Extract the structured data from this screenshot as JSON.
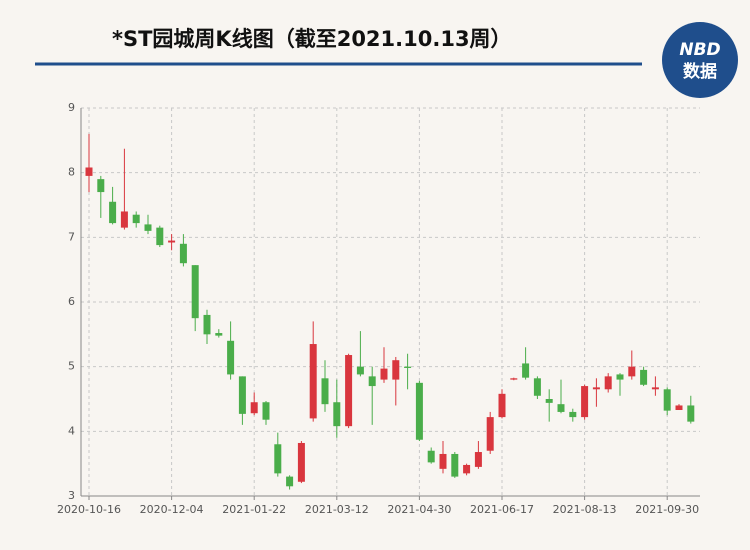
{
  "chart_data": {
    "type": "candlestick",
    "title": "*ST园城周K线图（截至2021.10.13周）",
    "logo": {
      "top": "NBD",
      "bottom": "数据"
    },
    "categories": [
      "2020-10-16",
      null,
      null,
      null,
      null,
      null,
      null,
      "2020-12-04",
      null,
      null,
      null,
      null,
      null,
      null,
      "2021-01-22",
      null,
      null,
      null,
      null,
      null,
      null,
      "2021-03-12",
      null,
      null,
      null,
      null,
      null,
      null,
      "2021-04-30",
      null,
      null,
      null,
      null,
      null,
      null,
      "2021-06-17",
      null,
      null,
      null,
      null,
      null,
      null,
      "2021-08-13",
      null,
      null,
      null,
      null,
      null,
      null,
      "2021-09-30",
      null,
      null
    ],
    "open": [
      7.95,
      7.9,
      7.55,
      7.15,
      7.35,
      7.2,
      7.15,
      6.92,
      6.9,
      6.57,
      5.8,
      5.52,
      5.4,
      4.85,
      4.28,
      4.45,
      3.8,
      3.3,
      3.22,
      4.2,
      4.82,
      4.45,
      4.08,
      5.0,
      4.85,
      4.8,
      4.8,
      5.0,
      4.75,
      3.7,
      3.42,
      3.65,
      3.35,
      3.45,
      3.7,
      4.22,
      4.8,
      5.05,
      4.82,
      4.5,
      4.42,
      4.3,
      4.22,
      4.65,
      4.65,
      4.88,
      4.85,
      4.95,
      4.65,
      4.65,
      4.33,
      4.4
    ],
    "high": [
      8.6,
      7.95,
      7.78,
      8.37,
      7.4,
      7.35,
      7.18,
      7.05,
      7.05,
      6.57,
      5.88,
      5.58,
      5.7,
      4.85,
      4.6,
      4.47,
      3.98,
      3.32,
      3.85,
      5.7,
      5.1,
      4.8,
      5.2,
      5.55,
      5.0,
      5.3,
      5.15,
      5.2,
      4.78,
      3.75,
      3.85,
      3.68,
      3.5,
      3.85,
      4.3,
      4.65,
      4.83,
      5.3,
      4.85,
      4.65,
      4.8,
      4.35,
      4.72,
      4.82,
      4.9,
      4.9,
      5.25,
      5.0,
      4.85,
      4.68,
      4.42,
      4.55
    ],
    "low": [
      7.7,
      7.3,
      7.2,
      7.12,
      7.15,
      7.05,
      6.85,
      6.8,
      6.55,
      5.55,
      5.35,
      5.45,
      4.8,
      4.1,
      4.25,
      4.1,
      3.3,
      3.1,
      3.2,
      4.15,
      4.3,
      3.9,
      4.05,
      4.85,
      4.1,
      4.75,
      4.4,
      4.65,
      3.85,
      3.5,
      3.35,
      3.28,
      3.32,
      3.42,
      3.65,
      4.2,
      4.79,
      4.8,
      4.5,
      4.15,
      4.28,
      4.15,
      4.18,
      4.38,
      4.6,
      4.55,
      4.8,
      4.7,
      4.55,
      4.25,
      4.33,
      4.12
    ],
    "close": [
      8.08,
      7.7,
      7.22,
      7.4,
      7.22,
      7.1,
      6.88,
      6.95,
      6.6,
      5.75,
      5.5,
      5.48,
      4.88,
      4.27,
      4.45,
      4.18,
      3.35,
      3.15,
      3.82,
      5.35,
      4.42,
      4.08,
      5.18,
      4.88,
      4.7,
      4.97,
      5.1,
      4.98,
      3.87,
      3.52,
      3.65,
      3.3,
      3.48,
      3.68,
      4.22,
      4.58,
      4.82,
      4.83,
      4.55,
      4.44,
      4.3,
      4.22,
      4.7,
      4.68,
      4.85,
      4.8,
      5.0,
      4.72,
      4.68,
      4.32,
      4.4,
      4.15
    ],
    "up_color": "#d9363e",
    "down_color": "#4aad4a",
    "ylim": [
      3,
      9
    ],
    "yticks": [
      3,
      4,
      5,
      6,
      7,
      8,
      9
    ],
    "grid": true
  }
}
